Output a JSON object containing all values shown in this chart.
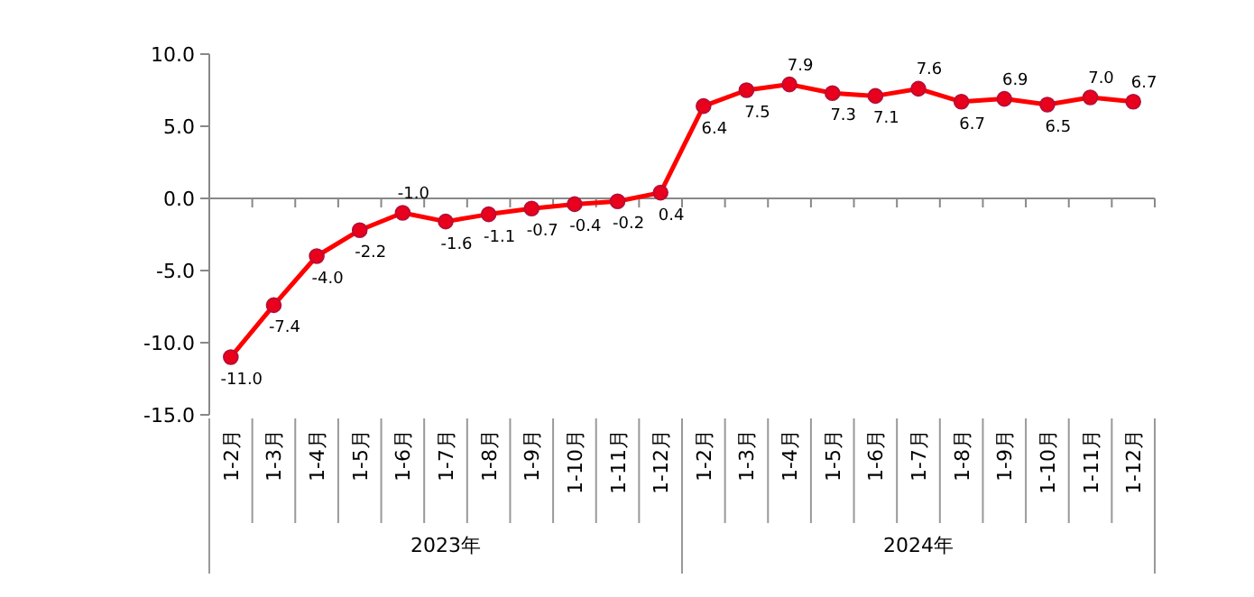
{
  "chart_data": {
    "type": "line",
    "categories": [
      "1-2月",
      "1-3月",
      "1-4月",
      "1-5月",
      "1-6月",
      "1-7月",
      "1-8月",
      "1-9月",
      "1-10月",
      "1-11月",
      "1-12月",
      "1-2月",
      "1-3月",
      "1-4月",
      "1-5月",
      "1-6月",
      "1-7月",
      "1-8月",
      "1-9月",
      "1-10月",
      "1-11月",
      "1-12月"
    ],
    "series": [
      {
        "color": "#ff0000",
        "values": [
          -11.0,
          -7.4,
          -4.0,
          -2.2,
          -1.0,
          -1.6,
          -1.1,
          -0.7,
          -0.4,
          -0.2,
          0.4,
          6.4,
          7.5,
          7.9,
          7.3,
          7.1,
          7.6,
          6.7,
          6.9,
          6.5,
          7.0,
          6.7
        ],
        "value_labels": [
          "-11.0",
          "-7.4",
          "-4.0",
          "-2.2",
          "-1.0",
          "-1.6",
          "-1.1",
          "-0.7",
          "-0.4",
          "-0.2",
          "0.4",
          "6.4",
          "7.5",
          "7.9",
          "7.3",
          "7.1",
          "7.6",
          "6.7",
          "6.9",
          "6.5",
          "7.0",
          "6.7"
        ]
      }
    ],
    "ylim": [
      -15,
      10
    ],
    "yticks": [
      {
        "value": -15,
        "label": "-15.0"
      },
      {
        "value": -10,
        "label": "-10.0"
      },
      {
        "value": -5,
        "label": "-5.0"
      },
      {
        "value": 0,
        "label": "0.0"
      },
      {
        "value": 5,
        "label": "5.0"
      },
      {
        "value": 10,
        "label": "10.0"
      }
    ],
    "annotations": [
      "2023年",
      "2024年"
    ],
    "marker": "circle"
  }
}
